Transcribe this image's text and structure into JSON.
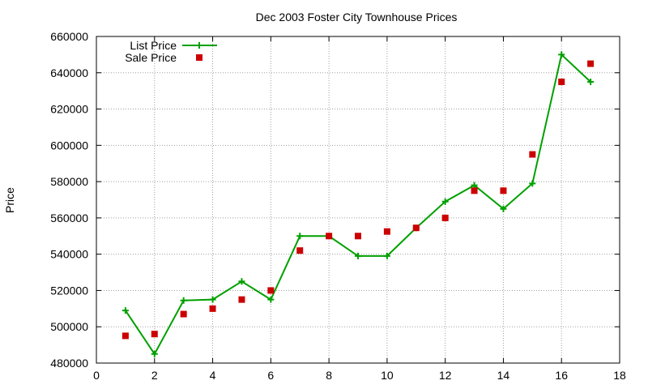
{
  "chart_data": {
    "type": "line",
    "title": "Dec 2003 Foster City Townhouse Prices",
    "xlabel": "",
    "ylabel": "Price",
    "xlim": [
      0,
      18
    ],
    "ylim": [
      480000,
      660000
    ],
    "xticks": [
      0,
      2,
      4,
      6,
      8,
      10,
      12,
      14,
      16,
      18
    ],
    "yticks": [
      480000,
      500000,
      520000,
      540000,
      560000,
      580000,
      600000,
      620000,
      640000,
      660000
    ],
    "grid": true,
    "legend_position": "top-left",
    "series": [
      {
        "name": "List Price",
        "style": "line-with-plus-markers",
        "color": "#00a000",
        "x": [
          1,
          2,
          3,
          4,
          5,
          6,
          7,
          8,
          9,
          10,
          11,
          12,
          13,
          14,
          15,
          16,
          17
        ],
        "y": [
          509000,
          485000,
          514500,
          515000,
          525000,
          515000,
          550000,
          550000,
          539000,
          539000,
          554500,
          569000,
          578000,
          565000,
          579000,
          650000,
          635000
        ]
      },
      {
        "name": "Sale Price",
        "style": "square-markers",
        "color": "#cc0000",
        "x": [
          1,
          2,
          3,
          4,
          5,
          6,
          7,
          8,
          9,
          10,
          11,
          12,
          13,
          14,
          15,
          16,
          17
        ],
        "y": [
          495000,
          496000,
          507000,
          510000,
          515000,
          520000,
          542000,
          550000,
          550000,
          552500,
          554500,
          560000,
          575000,
          575000,
          595000,
          635000,
          645000
        ]
      }
    ]
  }
}
